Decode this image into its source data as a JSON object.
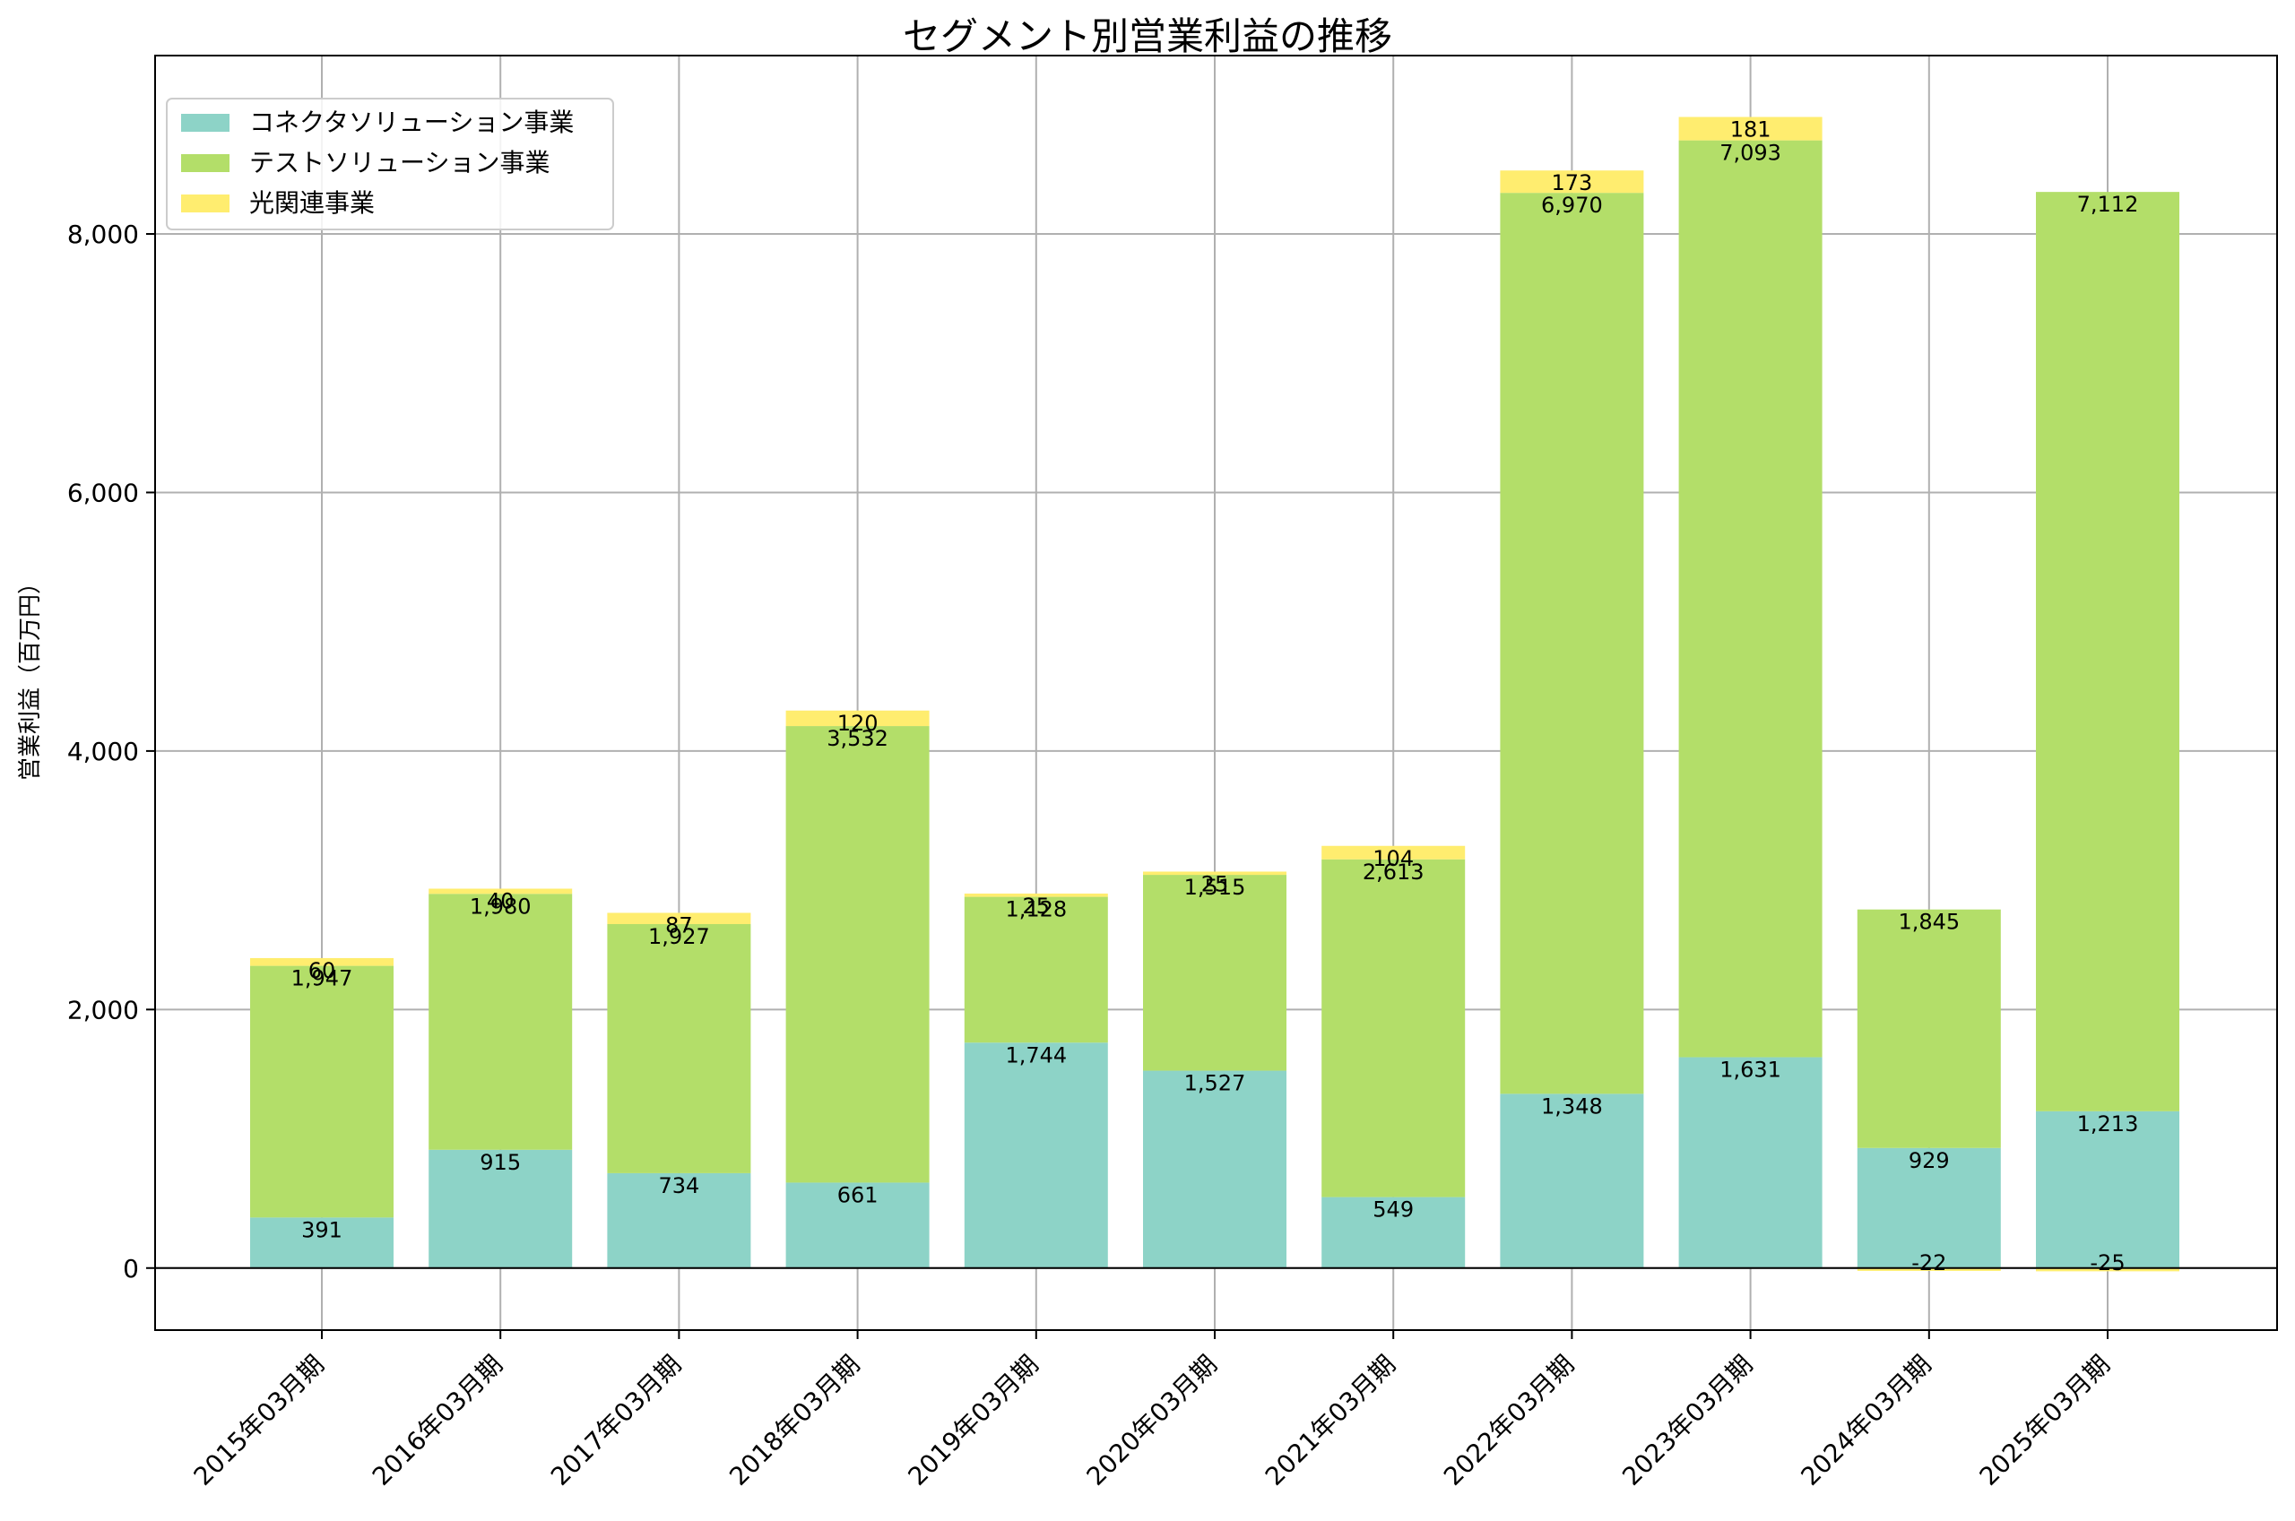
{
  "chart_data": {
    "type": "bar",
    "stacked": true,
    "title": "セグメント別営業利益の推移",
    "xlabel": "",
    "ylabel": "営業利益（百万円）",
    "ylim": [
      -480,
      9380
    ],
    "yticks": [
      0,
      2000,
      4000,
      6000,
      8000
    ],
    "ytick_labels": [
      "0",
      "2,000",
      "4,000",
      "6,000",
      "8,000"
    ],
    "grid": true,
    "legend_position": "top-left",
    "categories": [
      "2015年03月期",
      "2016年03月期",
      "2017年03月期",
      "2018年03月期",
      "2019年03月期",
      "2020年03月期",
      "2021年03月期",
      "2022年03月期",
      "2023年03月期",
      "2024年03月期",
      "2025年03月期"
    ],
    "series": [
      {
        "name": "コネクタソリューション事業",
        "color": "#8dd3c7",
        "values": [
          391,
          915,
          734,
          661,
          1744,
          1527,
          549,
          1348,
          1631,
          929,
          1213
        ],
        "labels": [
          "391",
          "915",
          "734",
          "661",
          "1,744",
          "1,527",
          "549",
          "1,348",
          "1,631",
          "929",
          "1,213"
        ]
      },
      {
        "name": "テストソリューション事業",
        "color": "#b3de69",
        "values": [
          1947,
          1980,
          1927,
          3532,
          1128,
          1515,
          2613,
          6970,
          7093,
          1845,
          7112
        ],
        "labels": [
          "1,947",
          "1,980",
          "1,927",
          "3,532",
          "1,128",
          "1,515",
          "2,613",
          "6,970",
          "7,093",
          "1,845",
          "7,112"
        ]
      },
      {
        "name": "光関連事業",
        "color": "#ffed6f",
        "values": [
          60,
          40,
          87,
          120,
          25,
          25,
          104,
          173,
          181,
          -22,
          -25
        ],
        "labels": [
          "60",
          "40",
          "87",
          "120",
          "25",
          "25",
          "104",
          "173",
          "181",
          "-22",
          "-25"
        ]
      }
    ]
  }
}
